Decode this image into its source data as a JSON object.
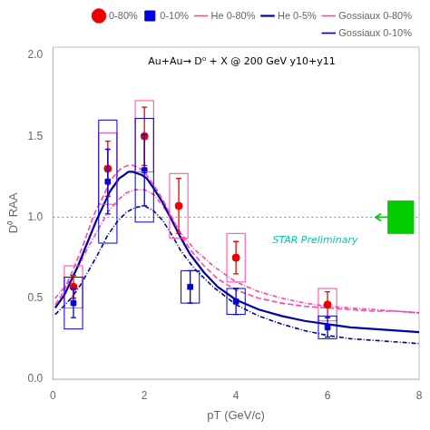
{
  "chart_data": {
    "type": "scatter",
    "xlabel": "pT (GeV/c)",
    "ylabel": "D⁰ RAA",
    "xlim": [
      0,
      8
    ],
    "ylim": [
      0,
      2.05
    ],
    "xticks": [
      0,
      2,
      4,
      6,
      8
    ],
    "yticks": [
      {
        "value": 0,
        "label": "0.0"
      },
      {
        "value": 0.5,
        "label": "0.5"
      },
      {
        "value": 1,
        "label": "1.0"
      },
      {
        "value": 1.5,
        "label": "1.5"
      },
      {
        "value": 2,
        "label": "2.0"
      }
    ],
    "grid": false,
    "legend": "upper right",
    "reference_line": 1.0,
    "annotations": [
      {
        "text": "Au+Au→ D⁰ + X @ 200 GeV y10+y11",
        "color": "#000000"
      },
      {
        "text": "STAR Preliminary",
        "color": "#00ccaa"
      }
    ],
    "series": [
      {
        "name": "0-80%",
        "type": "scatter",
        "marker": "circle",
        "color": "#ee0000",
        "x": [
          0.45,
          1.2,
          2.0,
          2.75,
          4.0,
          6.0
        ],
        "values": [
          0.57,
          1.3,
          1.5,
          1.07,
          0.75,
          0.46
        ],
        "yerr_lo": [
          0.07,
          0.17,
          0.18,
          0.17,
          0.1,
          0.08
        ],
        "yerr_hi": [
          0.07,
          0.17,
          0.18,
          0.17,
          0.1,
          0.08
        ],
        "sys_half_dy": [
          0.13,
          0.22,
          0.22,
          0.2,
          0.15,
          0.1
        ],
        "sys_half_dx": 0.2,
        "sys_color": "#ff44aa"
      },
      {
        "name": "0-10%",
        "type": "scatter",
        "marker": "square",
        "color": "#0000dd",
        "x": [
          0.45,
          1.2,
          2.0,
          3.0,
          4.0,
          6.0
        ],
        "values": [
          0.47,
          1.22,
          1.29,
          0.57,
          0.48,
          0.32
        ],
        "yerr_lo": [
          0.09,
          0.2,
          0.22,
          0.1,
          0.08,
          0.06
        ],
        "yerr_hi": [
          0.09,
          0.2,
          0.22,
          0.1,
          0.08,
          0.06
        ],
        "sys_half_dy": [
          0.16,
          0.38,
          0.32,
          0.1,
          0.08,
          0.07
        ],
        "sys_half_dx": 0.2,
        "sys_color": "#0000dd"
      },
      {
        "name": "He 0-80%",
        "type": "line",
        "line_style": "dashed",
        "color": "#ff44aa",
        "x": [
          0.05,
          0.15,
          0.25,
          0.35,
          0.45,
          0.55,
          0.65,
          0.75,
          0.85,
          0.95,
          1.05,
          1.15,
          1.25,
          1.35,
          1.45,
          1.55,
          1.65,
          1.75,
          1.85,
          1.95,
          2.05,
          2.2,
          2.4,
          2.6,
          2.8,
          3.0,
          3.3,
          3.6,
          4.0,
          4.5,
          5.0,
          5.5,
          6.0,
          6.5,
          7.0,
          7.5,
          8.0
        ],
        "values": [
          0.46,
          0.5,
          0.55,
          0.62,
          0.68,
          0.75,
          0.82,
          0.9,
          0.98,
          1.05,
          1.1,
          1.16,
          1.22,
          1.26,
          1.29,
          1.31,
          1.32,
          1.32,
          1.31,
          1.29,
          1.26,
          1.2,
          1.11,
          1.0,
          0.89,
          0.8,
          0.7,
          0.62,
          0.55,
          0.5,
          0.47,
          0.45,
          0.44,
          0.43,
          0.42,
          0.42,
          0.41
        ]
      },
      {
        "name": "He 0-5%",
        "type": "line",
        "line_style": "solid",
        "color": "#0000aa",
        "x": [
          0.05,
          0.15,
          0.25,
          0.35,
          0.45,
          0.55,
          0.65,
          0.75,
          0.85,
          0.95,
          1.05,
          1.15,
          1.25,
          1.35,
          1.45,
          1.55,
          1.65,
          1.75,
          1.85,
          1.95,
          2.05,
          2.2,
          2.4,
          2.6,
          2.8,
          3.0,
          3.3,
          3.6,
          4.0,
          4.5,
          5.0,
          5.5,
          6.0,
          6.5,
          7.0,
          7.5,
          8.0
        ],
        "values": [
          0.44,
          0.48,
          0.52,
          0.58,
          0.64,
          0.7,
          0.77,
          0.84,
          0.91,
          0.98,
          1.04,
          1.1,
          1.16,
          1.2,
          1.24,
          1.26,
          1.28,
          1.28,
          1.27,
          1.26,
          1.24,
          1.18,
          1.09,
          0.98,
          0.87,
          0.77,
          0.66,
          0.57,
          0.49,
          0.43,
          0.39,
          0.36,
          0.34,
          0.32,
          0.31,
          0.3,
          0.29
        ]
      },
      {
        "name": "Gossiaux 0-80%",
        "type": "line",
        "line_style": "dashdot",
        "color": "#ff44aa",
        "x": [
          0.05,
          0.2,
          0.4,
          0.6,
          0.8,
          1.0,
          1.2,
          1.4,
          1.6,
          1.8,
          2.0,
          2.2,
          2.4,
          2.6,
          2.8,
          3.1,
          3.5,
          4.0,
          4.5,
          5.0,
          5.5,
          6.0,
          6.5,
          7.0,
          7.5,
          8.0
        ],
        "values": [
          0.5,
          0.55,
          0.62,
          0.72,
          0.83,
          0.93,
          1.03,
          1.1,
          1.15,
          1.17,
          1.17,
          1.14,
          1.07,
          0.99,
          0.9,
          0.8,
          0.7,
          0.6,
          0.54,
          0.5,
          0.47,
          0.45,
          0.44,
          0.43,
          0.42,
          0.41
        ]
      },
      {
        "name": "Gossiaux 0-10%",
        "type": "line",
        "line_style": "dashdot",
        "color": "#0000aa",
        "x": [
          0.05,
          0.2,
          0.4,
          0.6,
          0.8,
          1.0,
          1.2,
          1.4,
          1.6,
          1.8,
          2.0,
          2.2,
          2.4,
          2.6,
          2.8,
          3.1,
          3.5,
          4.0,
          4.5,
          5.0,
          5.5,
          6.0,
          6.5,
          7.0,
          7.5,
          8.0
        ],
        "values": [
          0.4,
          0.44,
          0.5,
          0.58,
          0.68,
          0.78,
          0.89,
          0.97,
          1.03,
          1.06,
          1.07,
          1.04,
          0.98,
          0.89,
          0.79,
          0.68,
          0.57,
          0.46,
          0.39,
          0.34,
          0.3,
          0.27,
          0.25,
          0.24,
          0.23,
          0.22
        ]
      }
    ],
    "normalization_box": {
      "x": 7.6,
      "y": 1.0,
      "half_dx": 0.28,
      "half_dy": 0.1,
      "arrow_tip_x": 7.05,
      "color": "#00cc00"
    }
  }
}
